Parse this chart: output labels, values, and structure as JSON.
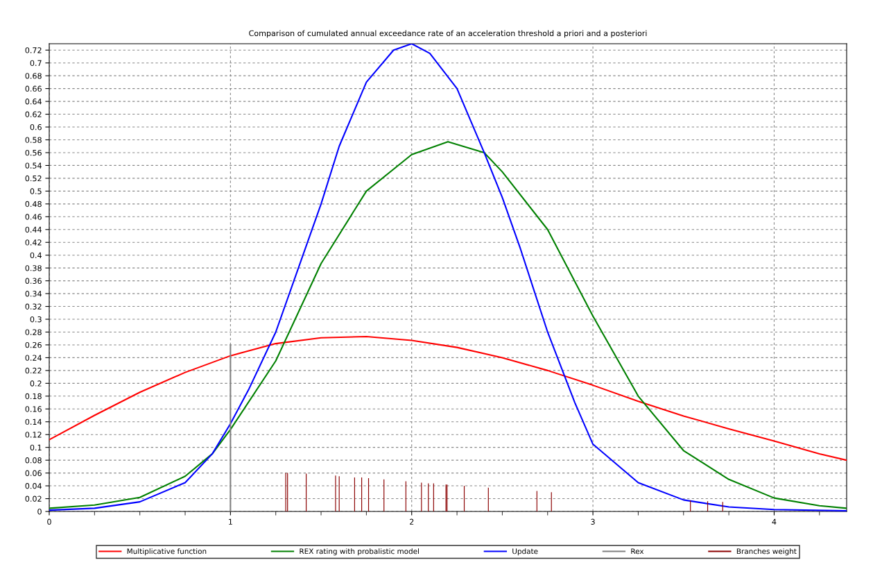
{
  "chart_data": {
    "type": "line",
    "title": "Comparison of cumulated annual exceedance rate of an acceleration threshold a priori and a posteriori",
    "xlim": [
      0,
      4.4
    ],
    "ylim": [
      0,
      0.73
    ],
    "xticks": [
      0,
      {
        "value": 0.25,
        "label": null
      },
      {
        "value": 0.5,
        "label": null
      },
      {
        "value": 0.75,
        "label": null
      },
      1,
      {
        "value": 1.25,
        "label": null
      },
      {
        "value": 1.5,
        "label": null
      },
      {
        "value": 1.75,
        "label": null
      },
      2,
      {
        "value": 2.25,
        "label": null
      },
      {
        "value": 2.5,
        "label": null
      },
      {
        "value": 2.75,
        "label": null
      },
      3,
      {
        "value": 3.25,
        "label": null
      },
      {
        "value": 3.5,
        "label": null
      },
      {
        "value": 3.75,
        "label": null
      },
      4,
      {
        "value": 4.25,
        "label": null
      }
    ],
    "yticks": [
      0,
      0.02,
      0.04,
      0.06,
      0.08,
      0.1,
      0.12,
      0.14,
      0.16,
      0.18,
      0.2,
      0.22,
      0.24,
      0.26,
      0.28,
      0.3,
      0.32,
      0.34,
      0.36,
      0.38,
      0.4,
      0.42,
      0.44,
      0.46,
      0.48,
      0.5,
      0.52,
      0.54,
      0.56,
      0.58,
      0.6,
      0.62,
      0.64,
      0.66,
      0.68,
      0.7,
      0.72
    ],
    "grid": true,
    "legend": "bottom",
    "series": [
      {
        "name": "Multiplicative function",
        "color": "#ff0000",
        "x": [
          0,
          0.25,
          0.5,
          0.75,
          1,
          1.25,
          1.5,
          1.75,
          2,
          2.25,
          2.5,
          2.75,
          3,
          3.25,
          3.5,
          3.75,
          4,
          4.25,
          4.4
        ],
        "values": [
          0.112,
          0.15,
          0.186,
          0.217,
          0.243,
          0.262,
          0.271,
          0.273,
          0.267,
          0.256,
          0.24,
          0.22,
          0.197,
          0.172,
          0.149,
          0.129,
          0.11,
          0.09,
          0.08
        ]
      },
      {
        "name": "REX rating with probalistic model",
        "color": "#008000",
        "x": [
          0,
          0.25,
          0.5,
          0.75,
          0.9,
          1,
          1.25,
          1.5,
          1.75,
          2,
          2.2,
          2.4,
          2.5,
          2.75,
          3,
          3.25,
          3.5,
          3.75,
          4,
          4.25,
          4.4
        ],
        "values": [
          0.005,
          0.01,
          0.022,
          0.055,
          0.09,
          0.128,
          0.235,
          0.387,
          0.5,
          0.557,
          0.577,
          0.56,
          0.53,
          0.44,
          0.305,
          0.18,
          0.095,
          0.05,
          0.021,
          0.009,
          0.005
        ]
      },
      {
        "name": "Update",
        "color": "#0000ff",
        "x": [
          0,
          0.25,
          0.5,
          0.75,
          0.9,
          1,
          1.1,
          1.25,
          1.4,
          1.5,
          1.6,
          1.75,
          1.9,
          2,
          2.1,
          2.25,
          2.4,
          2.5,
          2.6,
          2.75,
          2.9,
          3,
          3.25,
          3.5,
          3.75,
          4,
          4.4
        ],
        "values": [
          0.002,
          0.005,
          0.015,
          0.045,
          0.09,
          0.137,
          0.19,
          0.28,
          0.4,
          0.48,
          0.57,
          0.67,
          0.72,
          0.73,
          0.715,
          0.66,
          0.56,
          0.49,
          0.41,
          0.28,
          0.17,
          0.105,
          0.045,
          0.018,
          0.007,
          0.003,
          0.001
        ]
      },
      {
        "name": "Rex",
        "color": "#808080",
        "x": [
          1,
          1
        ],
        "values": [
          0,
          0.26
        ]
      },
      {
        "name": "Branches weight",
        "color": "#8b0000",
        "type": "bar",
        "x": [
          1.305,
          1.315,
          1.418,
          1.58,
          1.6,
          1.685,
          1.724,
          1.762,
          1.847,
          1.968,
          2.054,
          2.092,
          2.121,
          2.189,
          2.195,
          2.29,
          2.423,
          2.691,
          2.771,
          3.538,
          3.633,
          3.716
        ],
        "values": [
          0.06,
          0.06,
          0.059,
          0.056,
          0.055,
          0.053,
          0.053,
          0.052,
          0.05,
          0.047,
          0.045,
          0.044,
          0.044,
          0.042,
          0.042,
          0.04,
          0.037,
          0.032,
          0.03,
          0.017,
          0.016,
          0.015
        ]
      }
    ]
  }
}
